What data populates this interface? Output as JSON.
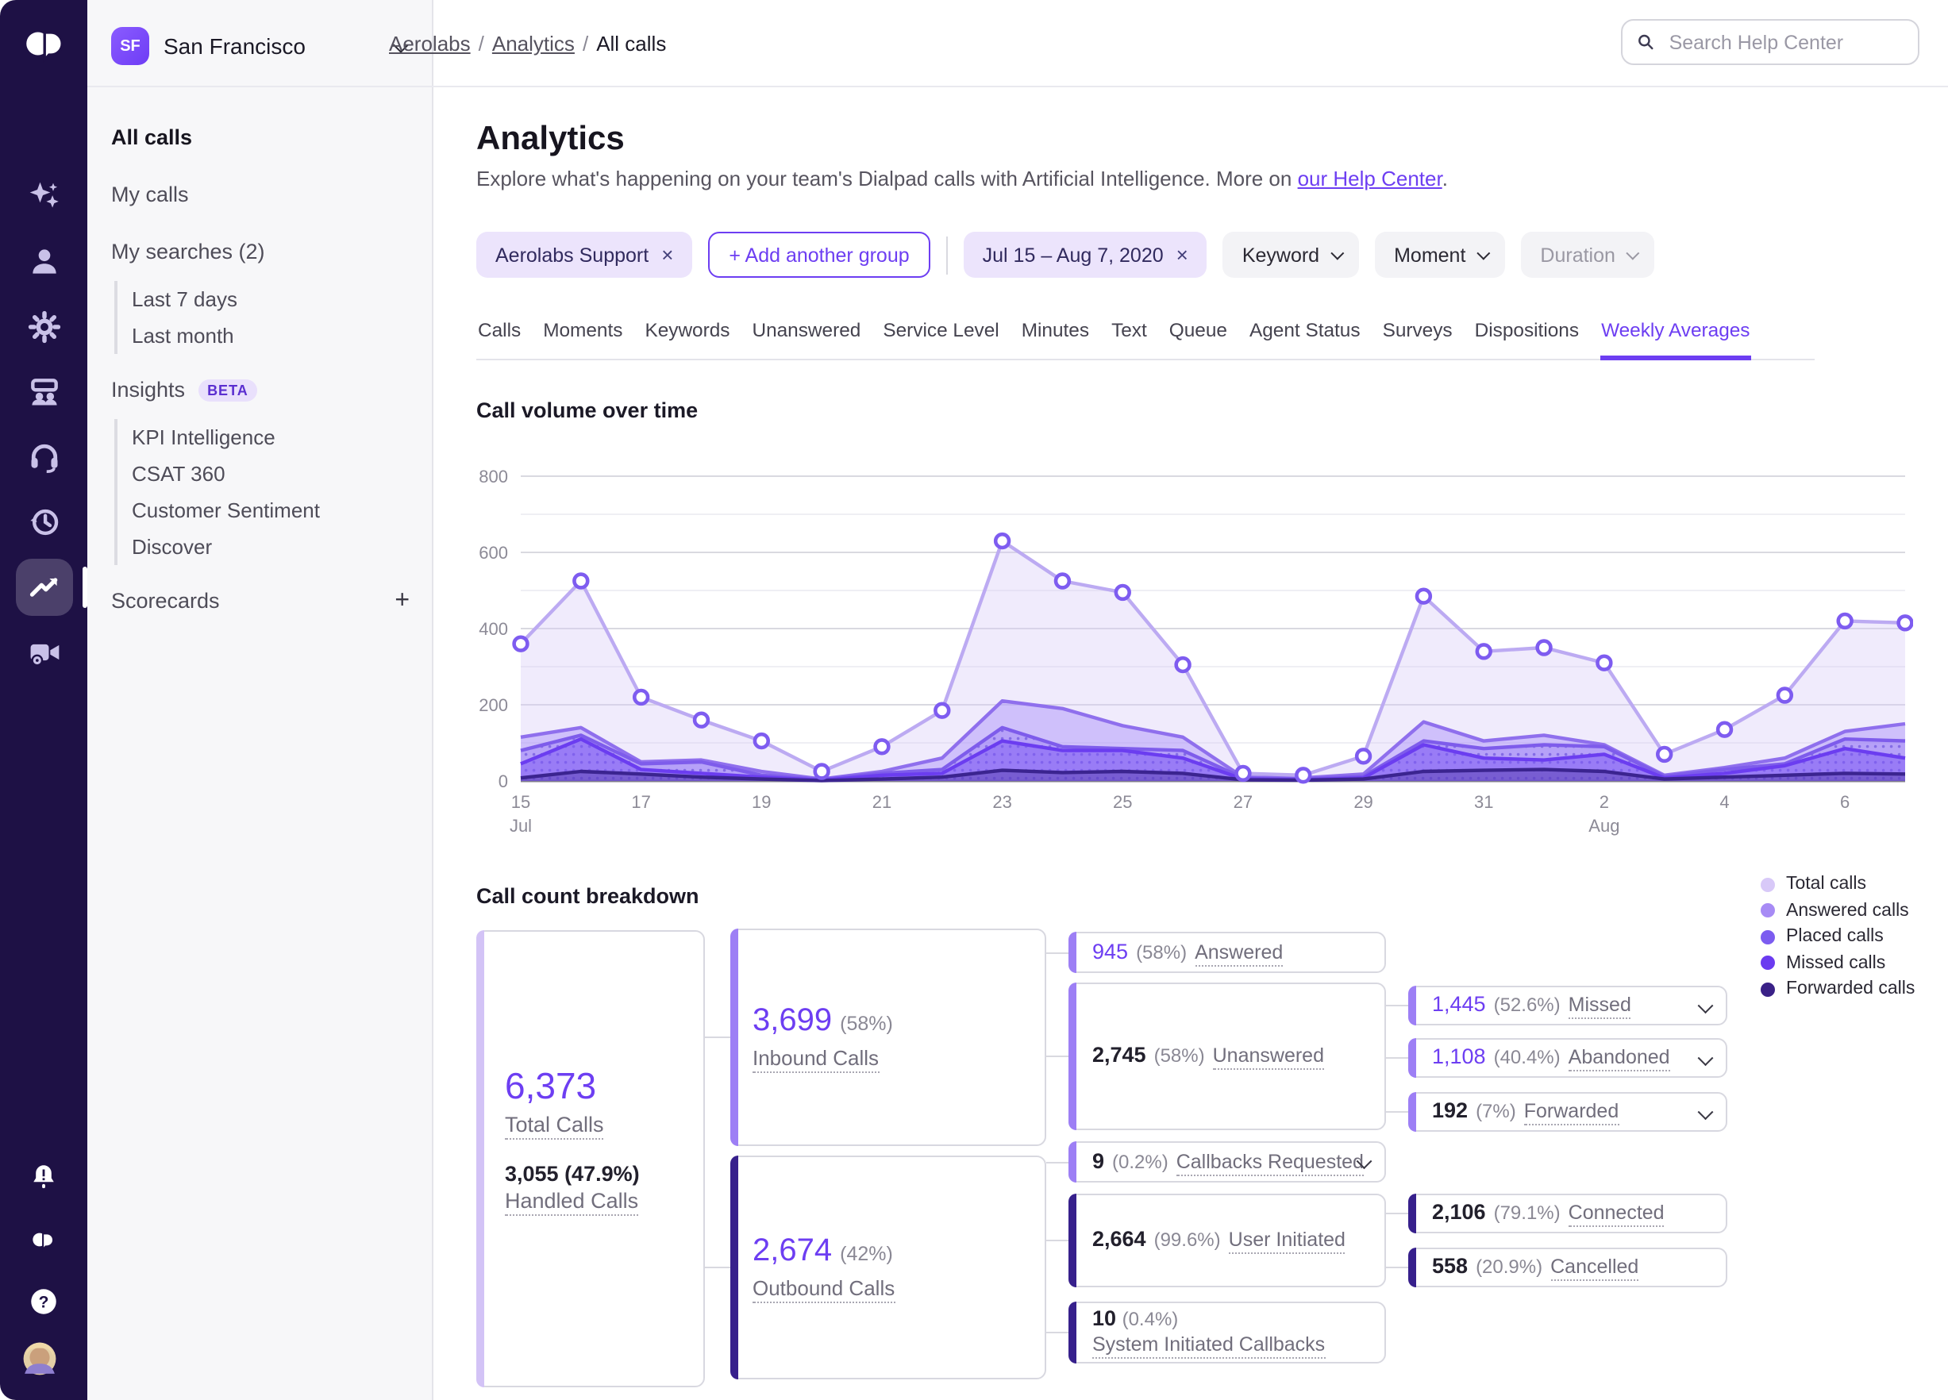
{
  "workspace": {
    "initials": "SF",
    "name": "San Francisco"
  },
  "breadcrumb": {
    "items": [
      "Aerolabs",
      "Analytics",
      "All calls"
    ]
  },
  "search": {
    "placeholder": "Search Help Center"
  },
  "rail": {
    "items": [
      "ai-assistant",
      "contacts",
      "settings",
      "coaching",
      "support",
      "history",
      "analytics",
      "meetings"
    ],
    "active": "analytics",
    "bottom": [
      "notifications",
      "dialpad",
      "help",
      "profile"
    ]
  },
  "sidebar": {
    "sections": [
      {
        "type": "item",
        "id": "all-calls",
        "label": "All calls",
        "active": true
      },
      {
        "type": "item",
        "id": "my-calls",
        "label": "My calls",
        "spaced": true
      },
      {
        "type": "item",
        "id": "my-searches",
        "label": "My searches (2)",
        "spaced": true
      },
      {
        "type": "group",
        "items": [
          {
            "id": "last-7-days",
            "label": "Last 7 days"
          },
          {
            "id": "last-month",
            "label": "Last month"
          }
        ]
      },
      {
        "type": "item",
        "id": "insights",
        "label": "Insights",
        "badge": "BETA",
        "spaced": true
      },
      {
        "type": "group",
        "items": [
          {
            "id": "kpi-intelligence",
            "label": "KPI Intelligence"
          },
          {
            "id": "csat-360",
            "label": "CSAT 360"
          },
          {
            "id": "customer-sentiment",
            "label": "Customer Sentiment"
          },
          {
            "id": "discover",
            "label": "Discover"
          }
        ]
      },
      {
        "type": "item",
        "id": "scorecards",
        "label": "Scorecards",
        "action": "+",
        "spaced": true
      }
    ]
  },
  "page": {
    "title": "Analytics",
    "description_prefix": "Explore what's happening on your team's Dialpad calls with Artificial Intelligence. More on ",
    "help_link": "our Help Center",
    "description_suffix": "."
  },
  "filters": {
    "chips": [
      {
        "kind": "filter",
        "label": "Aerolabs Support",
        "removable": true
      },
      {
        "kind": "add",
        "label": "+ Add another group"
      },
      {
        "kind": "divider"
      },
      {
        "kind": "filter",
        "label": "Jul 15 – Aug 7, 2020",
        "removable": true
      },
      {
        "kind": "dropdown",
        "label": "Keyword"
      },
      {
        "kind": "dropdown",
        "label": "Moment"
      },
      {
        "kind": "dropdown",
        "label": "Duration",
        "disabled": true
      }
    ]
  },
  "tabs": {
    "items": [
      "Calls",
      "Moments",
      "Keywords",
      "Unanswered",
      "Service Level",
      "Minutes",
      "Text",
      "Queue",
      "Agent Status",
      "Surveys",
      "Dispositions",
      "Weekly Averages"
    ],
    "active": "Weekly Averages"
  },
  "sections": {
    "chart_title": "Call volume over time",
    "breakdown_title": "Call count breakdown"
  },
  "chart_data": {
    "type": "area",
    "title": "Call volume over time",
    "x_labels": [
      "Jul 15",
      "Jul 16",
      "Jul 17",
      "Jul 18",
      "Jul 19",
      "Jul 20",
      "Jul 21",
      "Jul 22",
      "Jul 23",
      "Jul 24",
      "Jul 25",
      "Jul 26",
      "Jul 27",
      "Jul 28",
      "Jul 29",
      "Jul 30",
      "Jul 31",
      "Aug 1",
      "Aug 2",
      "Aug 3",
      "Aug 4",
      "Aug 5",
      "Aug 6",
      "Aug 7"
    ],
    "tick_indices": [
      0,
      2,
      4,
      6,
      8,
      10,
      12,
      14,
      16,
      18,
      20,
      22
    ],
    "tick_labels": [
      "15",
      "17",
      "19",
      "21",
      "23",
      "25",
      "27",
      "29",
      "31",
      "2",
      "4",
      "6"
    ],
    "month_markers": [
      {
        "index": 0,
        "label": "Jul"
      },
      {
        "index": 18,
        "label": "Aug"
      }
    ],
    "ylim": [
      0,
      800
    ],
    "y_ticks": [
      0,
      200,
      400,
      600,
      800
    ],
    "grid": true,
    "legend_position": "right-of-breakdown",
    "series": [
      {
        "name": "Total calls",
        "color": "#bcaaf2",
        "fill": "rgba(216,203,248,0.38)",
        "markers": true,
        "values": [
          360,
          525,
          220,
          160,
          105,
          25,
          90,
          185,
          630,
          525,
          495,
          305,
          20,
          15,
          65,
          485,
          340,
          350,
          310,
          70,
          135,
          225,
          420,
          415
        ]
      },
      {
        "name": "Answered calls",
        "color": "#8f6fed",
        "fill": "rgba(167,139,250,0.45)",
        "values": [
          115,
          140,
          50,
          55,
          25,
          5,
          25,
          60,
          210,
          190,
          145,
          115,
          10,
          8,
          18,
          155,
          105,
          120,
          95,
          15,
          35,
          60,
          130,
          150
        ]
      },
      {
        "name": "Placed calls",
        "color": "#7e5ceb",
        "fill": "rgba(146,115,245,0.40)",
        "dotted": true,
        "values": [
          80,
          120,
          45,
          50,
          15,
          4,
          20,
          30,
          140,
          90,
          85,
          80,
          8,
          5,
          12,
          105,
          85,
          95,
          90,
          12,
          30,
          45,
          110,
          105
        ]
      },
      {
        "name": "Missed calls",
        "color": "#6b3df0",
        "fill": "rgba(124,88,243,0.50)",
        "values": [
          45,
          110,
          30,
          20,
          10,
          2,
          15,
          20,
          105,
          80,
          80,
          60,
          5,
          3,
          8,
          95,
          60,
          55,
          70,
          8,
          20,
          40,
          85,
          60
        ]
      },
      {
        "name": "Forwarded calls",
        "color": "#3b2490",
        "fill": "rgba(59,36,144,0.35)",
        "values": [
          8,
          25,
          18,
          10,
          5,
          1,
          5,
          10,
          28,
          22,
          25,
          20,
          3,
          2,
          5,
          25,
          28,
          30,
          25,
          5,
          10,
          15,
          20,
          18
        ]
      }
    ]
  },
  "legend": {
    "items": [
      {
        "label": "Total calls",
        "color": "#d8c9f8"
      },
      {
        "label": "Answered calls",
        "color": "#a78bf5"
      },
      {
        "label": "Placed calls",
        "color": "#7c5cf0"
      },
      {
        "label": "Missed calls",
        "color": "#6b3bf0"
      },
      {
        "label": "Forwarded calls",
        "color": "#3a2187"
      }
    ]
  },
  "breakdown": {
    "nodes": [
      {
        "id": "total",
        "kind": "total",
        "accent": "light",
        "big": "6,373",
        "big_label": "Total Calls",
        "sub_value": "3,055 (47.9%)",
        "sub_label": "Handled Calls"
      },
      {
        "id": "inbound",
        "kind": "major",
        "accent": "mid",
        "big": "3,699",
        "pct": "(58%)",
        "label": "Inbound Calls"
      },
      {
        "id": "outbound",
        "kind": "major",
        "accent": "dark",
        "big": "2,674",
        "pct": "(42%)",
        "label": "Outbound Calls"
      },
      {
        "id": "answered",
        "kind": "small",
        "accent": "mid",
        "value": "945",
        "vstyle": "purple",
        "pct": "(58%)",
        "label": "Answered"
      },
      {
        "id": "unanswered",
        "kind": "small",
        "accent": "mid",
        "value": "2,745",
        "vstyle": "dark",
        "pct": "(58%)",
        "label": "Unanswered"
      },
      {
        "id": "callbacks-requested",
        "kind": "small",
        "accent": "mid",
        "value": "9",
        "vstyle": "dark",
        "pct": "(0.2%)",
        "label": "Callbacks Requested",
        "chevron": true
      },
      {
        "id": "missed",
        "kind": "small",
        "accent": "mid",
        "value": "1,445",
        "vstyle": "purple",
        "pct": "(52.6%)",
        "label": "Missed",
        "chevron": true
      },
      {
        "id": "abandoned",
        "kind": "small",
        "accent": "mid",
        "value": "1,108",
        "vstyle": "purple",
        "pct": "(40.4%)",
        "label": "Abandoned",
        "chevron": true
      },
      {
        "id": "forwarded",
        "kind": "small",
        "accent": "mid",
        "value": "192",
        "vstyle": "dark",
        "pct": "(7%)",
        "label": "Forwarded",
        "chevron": true
      },
      {
        "id": "user-initiated",
        "kind": "small",
        "accent": "dark",
        "value": "2,664",
        "vstyle": "dark",
        "pct": "(99.6%)",
        "label": "User Initiated"
      },
      {
        "id": "system-initiated-callbacks",
        "kind": "twoline",
        "accent": "dark",
        "value": "10",
        "vstyle": "dark",
        "pct": "(0.4%)",
        "label": "System Initiated Callbacks"
      },
      {
        "id": "connected",
        "kind": "small",
        "accent": "dark",
        "value": "2,106",
        "vstyle": "dark",
        "pct": "(79.1%)",
        "label": "Connected"
      },
      {
        "id": "cancelled",
        "kind": "small",
        "accent": "dark",
        "value": "558",
        "vstyle": "dark",
        "pct": "(20.9%)",
        "label": "Cancelled"
      }
    ]
  }
}
